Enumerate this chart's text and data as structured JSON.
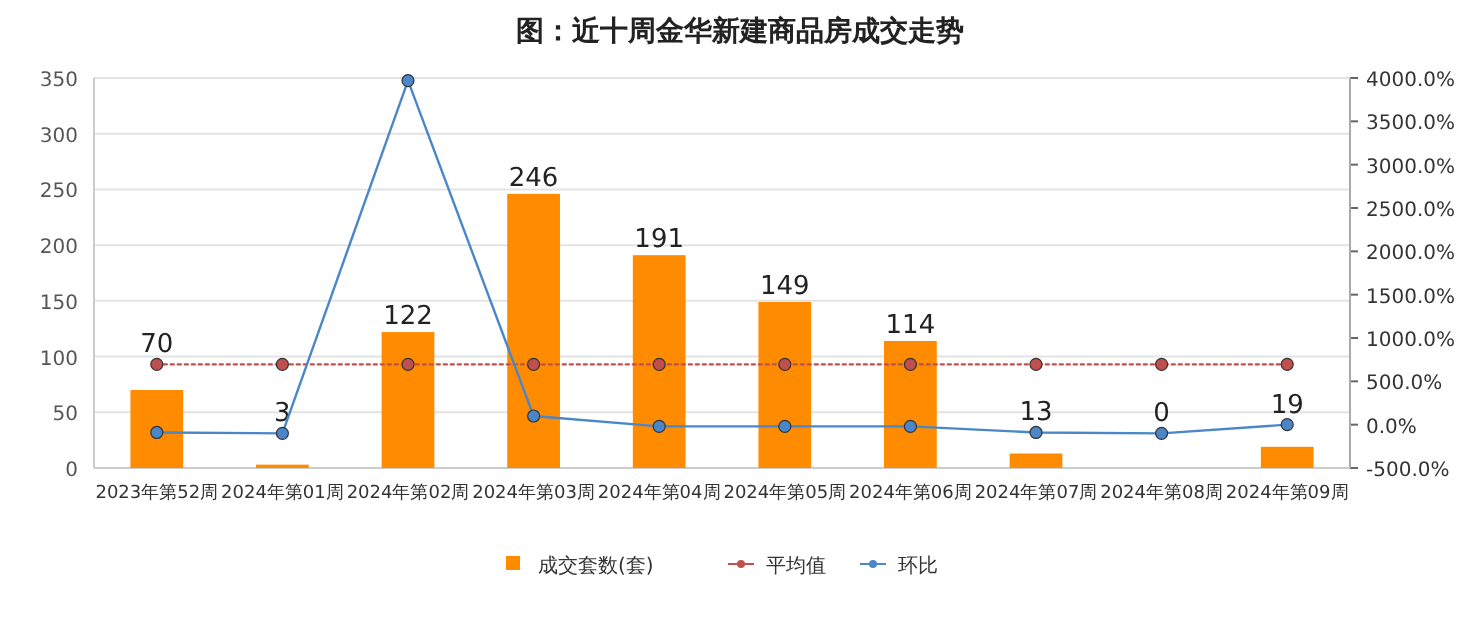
{
  "chart_data": {
    "type": "bar",
    "title": "图：近十周金华新建商品房成交走势",
    "categories": [
      "2023年第52周",
      "2024年第01周",
      "2024年第02周",
      "2024年第03周",
      "2024年第04周",
      "2024年第05周",
      "2024年第06周",
      "2024年第07周",
      "2024年第08周",
      "2024年第09周"
    ],
    "series": [
      {
        "name": "成交套数(套)",
        "color": "#ff8c00",
        "values": [
          70,
          3,
          122,
          246,
          191,
          149,
          114,
          13,
          0,
          19
        ],
        "data_labels": true
      },
      {
        "name": "平均值",
        "type": "line",
        "color": "#c0504d",
        "line_style": "dotted",
        "values": [
          93,
          93,
          93,
          93,
          93,
          93,
          93,
          93,
          93,
          93
        ]
      },
      {
        "name": "环比",
        "type": "line",
        "axis": "y2",
        "color": "#4a86c8",
        "line_style": "solid",
        "values": [
          -90,
          -100,
          3970,
          100,
          -20,
          -20,
          -20,
          -90,
          -100,
          0
        ]
      }
    ],
    "ylim": [
      0,
      350
    ],
    "yticks": [
      0,
      50,
      100,
      150,
      200,
      250,
      300,
      350
    ],
    "y2lim": [
      -500,
      4000
    ],
    "y2ticks": [
      {
        "value": -500,
        "label": "-500.0%"
      },
      {
        "value": 0,
        "label": "0.0%"
      },
      {
        "value": 500,
        "label": "500.0%"
      },
      {
        "value": 1000,
        "label": "1000.0%"
      },
      {
        "value": 1500,
        "label": "1500.0%"
      },
      {
        "value": 2000,
        "label": "2000.0%"
      },
      {
        "value": 2500,
        "label": "2500.0%"
      },
      {
        "value": 3000,
        "label": "3000.0%"
      },
      {
        "value": 3500,
        "label": "3500.0%"
      },
      {
        "value": 4000,
        "label": "4000.0%"
      }
    ],
    "grid": "y",
    "legend": "bottom",
    "marker": "circle"
  }
}
